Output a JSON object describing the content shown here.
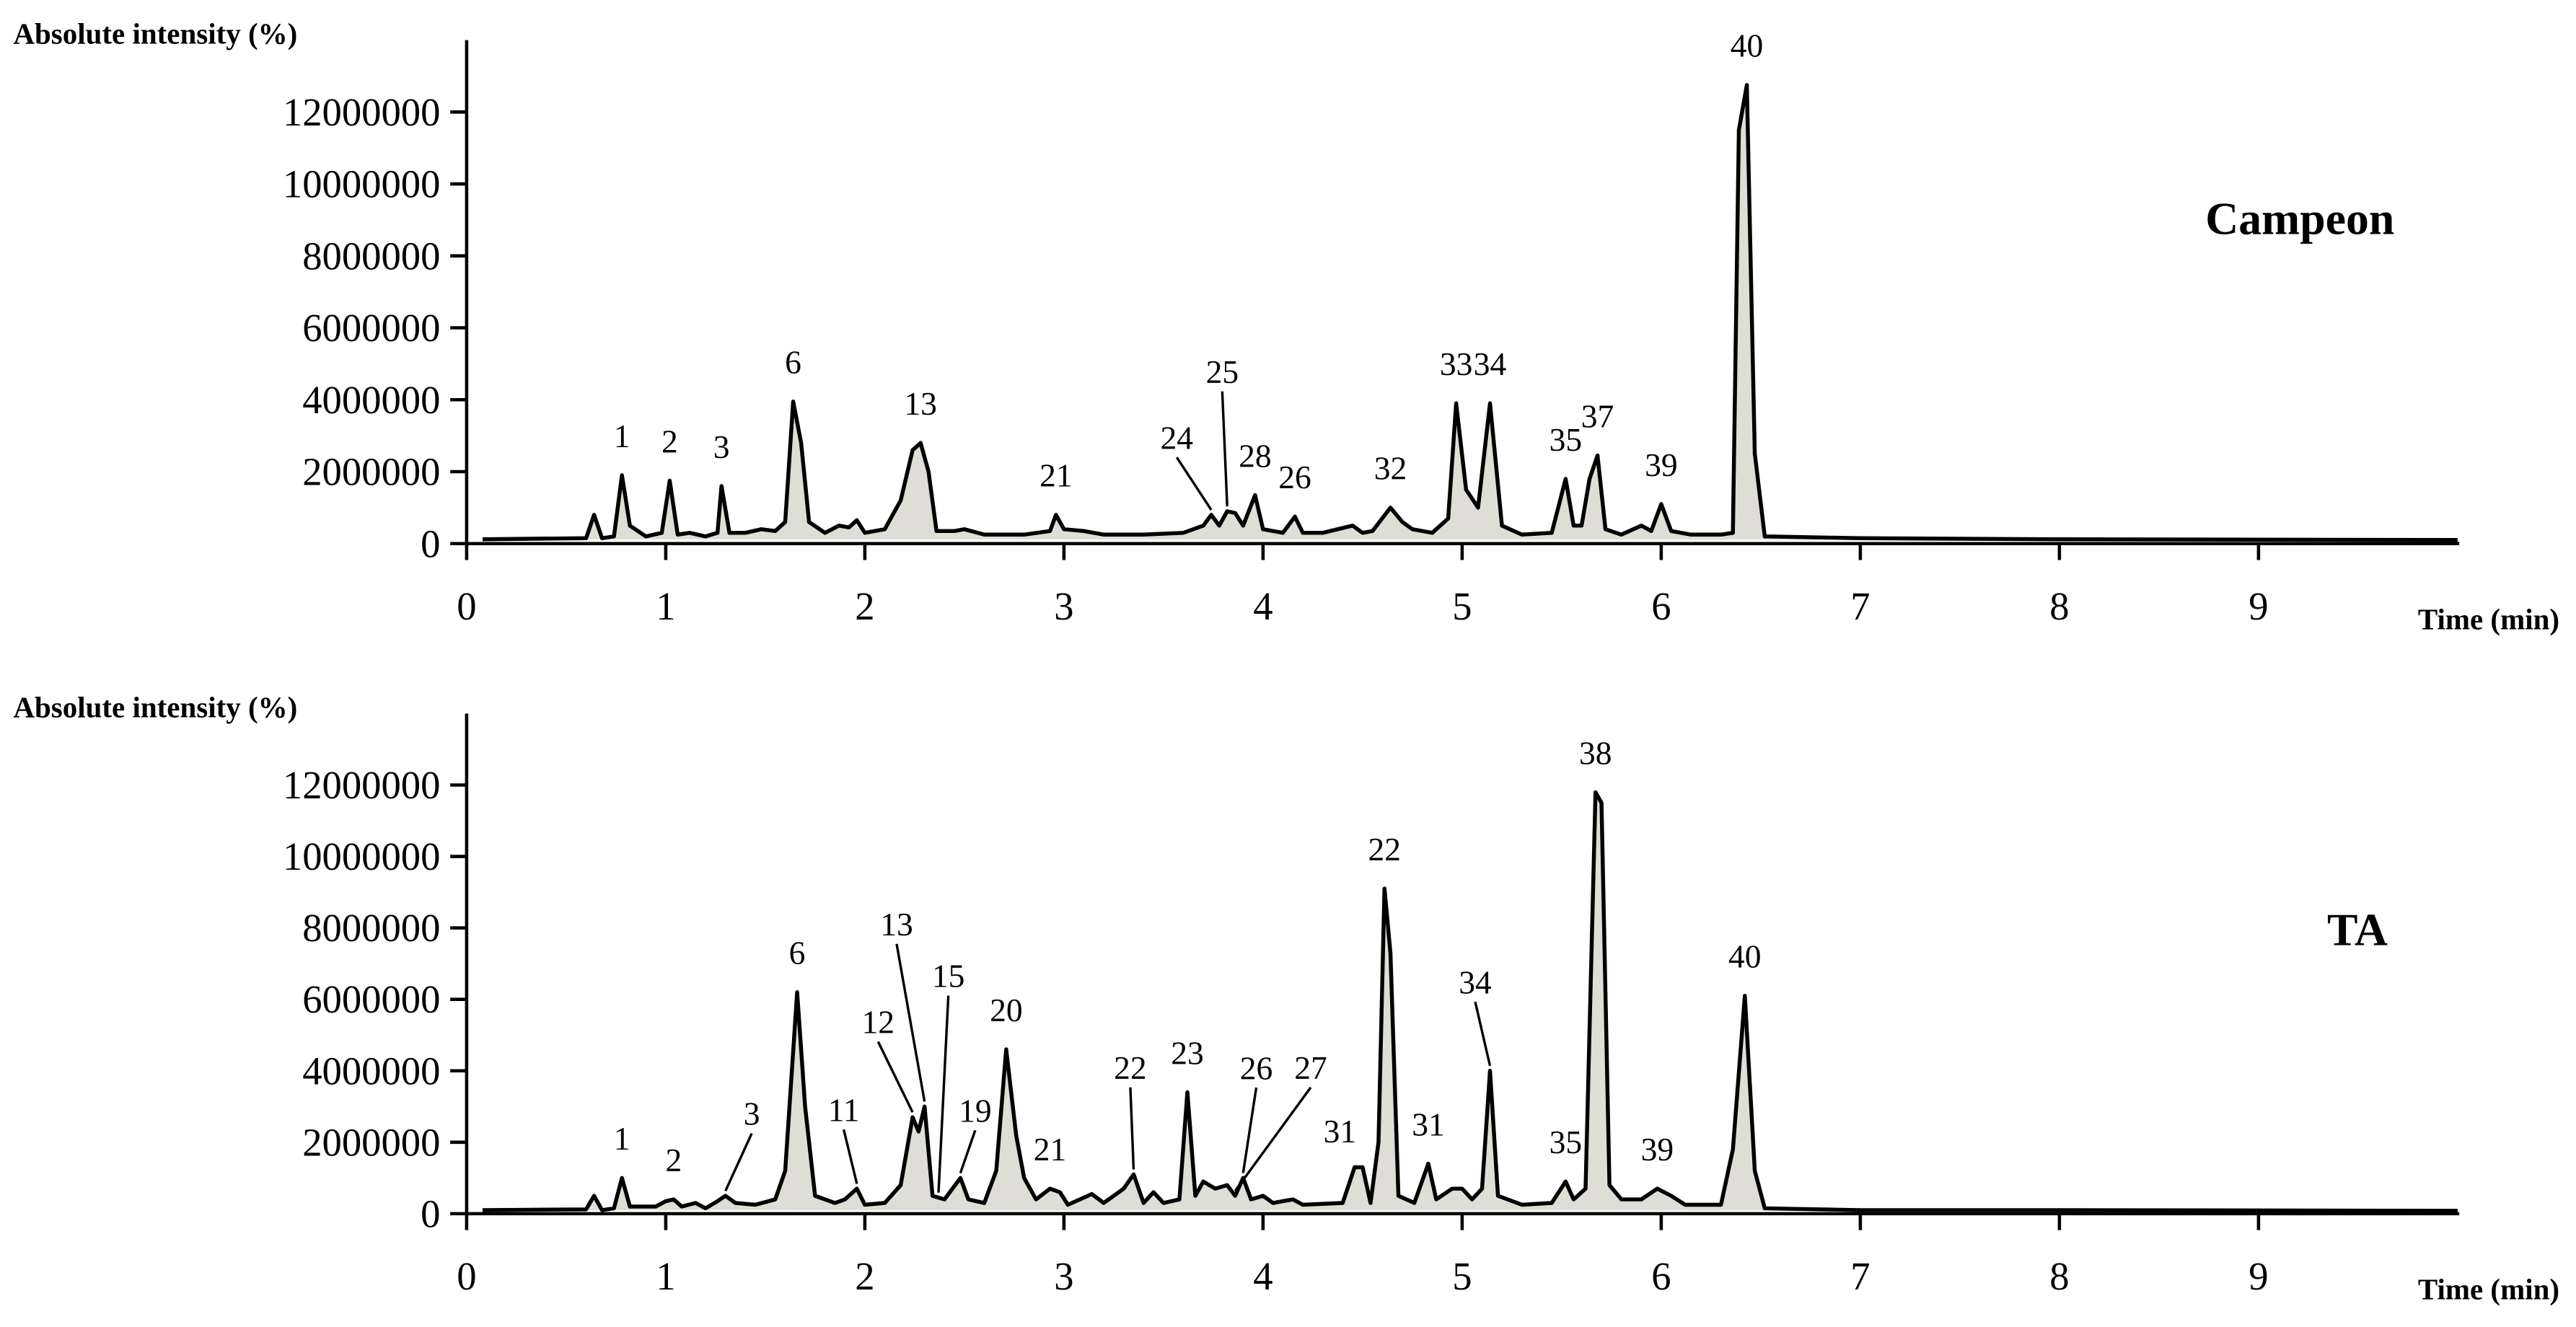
{
  "chart_data": [
    {
      "type": "area",
      "title": "Campeon",
      "y_label": "Absolute intensity (%)",
      "x_label": "Time (min)",
      "color": "#deded6",
      "line_color": "#000000",
      "xlim": [
        0,
        10
      ],
      "xticks": [
        0,
        1,
        2,
        3,
        4,
        5,
        6,
        7,
        8,
        9
      ],
      "ylim": [
        0,
        14000000
      ],
      "yticks": [
        0,
        2000000,
        4000000,
        6000000,
        8000000,
        10000000,
        12000000
      ],
      "x": [
        0.08,
        0.6,
        0.64,
        0.68,
        0.74,
        0.78,
        0.82,
        0.9,
        0.98,
        1.02,
        1.06,
        1.12,
        1.2,
        1.26,
        1.28,
        1.32,
        1.4,
        1.48,
        1.55,
        1.6,
        1.64,
        1.68,
        1.72,
        1.8,
        1.87,
        1.92,
        1.96,
        2.0,
        2.1,
        2.18,
        2.24,
        2.28,
        2.32,
        2.36,
        2.45,
        2.5,
        2.6,
        2.8,
        2.93,
        2.96,
        3.0,
        3.1,
        3.2,
        3.4,
        3.6,
        3.7,
        3.74,
        3.78,
        3.82,
        3.86,
        3.9,
        3.96,
        4.0,
        4.1,
        4.16,
        4.2,
        4.3,
        4.45,
        4.5,
        4.55,
        4.64,
        4.7,
        4.75,
        4.85,
        4.93,
        4.97,
        5.02,
        5.08,
        5.14,
        5.2,
        5.3,
        5.45,
        5.52,
        5.56,
        5.6,
        5.64,
        5.68,
        5.72,
        5.8,
        5.9,
        5.95,
        6.0,
        6.05,
        6.15,
        6.3,
        6.36,
        6.39,
        6.43,
        6.47,
        6.52,
        7.0,
        8.0,
        10.0
      ],
      "values": [
        120000,
        150000,
        800000,
        150000,
        200000,
        1900000,
        500000,
        200000,
        300000,
        1750000,
        250000,
        300000,
        200000,
        300000,
        1600000,
        300000,
        300000,
        400000,
        350000,
        600000,
        3950000,
        2800000,
        600000,
        300000,
        500000,
        450000,
        650000,
        300000,
        400000,
        1200000,
        2600000,
        2800000,
        2000000,
        350000,
        350000,
        400000,
        250000,
        250000,
        350000,
        800000,
        400000,
        350000,
        250000,
        250000,
        300000,
        500000,
        800000,
        500000,
        900000,
        850000,
        500000,
        1350000,
        400000,
        300000,
        750000,
        300000,
        300000,
        500000,
        300000,
        350000,
        1000000,
        600000,
        400000,
        300000,
        700000,
        3900000,
        1500000,
        1000000,
        3900000,
        500000,
        250000,
        300000,
        1800000,
        500000,
        500000,
        1800000,
        2450000,
        400000,
        250000,
        500000,
        350000,
        1100000,
        350000,
        250000,
        250000,
        300000,
        11500000,
        12750000,
        2500000,
        200000,
        150000,
        120000,
        100000
      ],
      "annotations": [
        {
          "text": "1",
          "x": 0.78,
          "y": 1900000
        },
        {
          "text": "2",
          "x": 1.02,
          "y": 1750000
        },
        {
          "text": "3",
          "x": 1.28,
          "y": 1600000
        },
        {
          "text": "6",
          "x": 1.64,
          "y": 3950000
        },
        {
          "text": "13",
          "x": 2.28,
          "y": 2800000
        },
        {
          "text": "21",
          "x": 2.96,
          "y": 800000
        },
        {
          "text": "24",
          "x": 3.74,
          "y": 800000
        },
        {
          "text": "25",
          "x": 3.82,
          "y": 900000
        },
        {
          "text": "28",
          "x": 3.96,
          "y": 1350000
        },
        {
          "text": "26",
          "x": 4.16,
          "y": 750000
        },
        {
          "text": "32",
          "x": 4.64,
          "y": 1000000
        },
        {
          "text": "33",
          "x": 4.97,
          "y": 3900000
        },
        {
          "text": "34",
          "x": 5.14,
          "y": 3900000
        },
        {
          "text": "35",
          "x": 5.52,
          "y": 1800000
        },
        {
          "text": "37",
          "x": 5.68,
          "y": 2450000
        },
        {
          "text": "39",
          "x": 6.0,
          "y": 1100000
        },
        {
          "text": "40",
          "x": 6.43,
          "y": 12750000
        }
      ]
    },
    {
      "type": "area",
      "title": "TA",
      "y_label": "Absolute intensity (%)",
      "x_label": "Time (min)",
      "color": "#deded6",
      "line_color": "#000000",
      "xlim": [
        0,
        10
      ],
      "xticks": [
        0,
        1,
        2,
        3,
        4,
        5,
        6,
        7,
        8,
        9
      ],
      "ylim": [
        0,
        14000000
      ],
      "yticks": [
        0,
        2000000,
        4000000,
        6000000,
        8000000,
        10000000,
        12000000
      ],
      "x": [
        0.08,
        0.6,
        0.64,
        0.68,
        0.74,
        0.78,
        0.82,
        0.95,
        1.0,
        1.04,
        1.08,
        1.15,
        1.2,
        1.26,
        1.3,
        1.35,
        1.45,
        1.55,
        1.6,
        1.66,
        1.7,
        1.75,
        1.85,
        1.9,
        1.96,
        2.0,
        2.1,
        2.18,
        2.24,
        2.27,
        2.3,
        2.34,
        2.37,
        2.4,
        2.48,
        2.52,
        2.6,
        2.66,
        2.71,
        2.76,
        2.8,
        2.86,
        2.93,
        2.98,
        3.02,
        3.08,
        3.14,
        3.2,
        3.3,
        3.35,
        3.4,
        3.45,
        3.5,
        3.58,
        3.62,
        3.66,
        3.7,
        3.76,
        3.82,
        3.86,
        3.9,
        3.94,
        4.0,
        4.05,
        4.15,
        4.2,
        4.4,
        4.46,
        4.5,
        4.54,
        4.58,
        4.61,
        4.64,
        4.68,
        4.76,
        4.83,
        4.87,
        4.95,
        5.0,
        5.05,
        5.1,
        5.14,
        5.18,
        5.3,
        5.45,
        5.52,
        5.56,
        5.62,
        5.67,
        5.7,
        5.74,
        5.8,
        5.9,
        5.98,
        6.05,
        6.12,
        6.3,
        6.36,
        6.42,
        6.47,
        6.52,
        7.0,
        8.0,
        10.0
      ],
      "values": [
        100000,
        120000,
        500000,
        100000,
        150000,
        1000000,
        200000,
        200000,
        350000,
        400000,
        200000,
        300000,
        150000,
        350000,
        500000,
        300000,
        250000,
        400000,
        1200000,
        6200000,
        3000000,
        500000,
        300000,
        400000,
        700000,
        250000,
        300000,
        800000,
        2700000,
        2300000,
        3000000,
        500000,
        450000,
        400000,
        1000000,
        400000,
        300000,
        1200000,
        4600000,
        2200000,
        1000000,
        400000,
        700000,
        600000,
        250000,
        400000,
        550000,
        300000,
        700000,
        1100000,
        300000,
        600000,
        300000,
        400000,
        3400000,
        500000,
        900000,
        700000,
        800000,
        500000,
        1000000,
        400000,
        500000,
        300000,
        400000,
        250000,
        300000,
        1300000,
        1300000,
        300000,
        2000000,
        9100000,
        7300000,
        500000,
        300000,
        1400000,
        400000,
        700000,
        700000,
        400000,
        700000,
        4000000,
        500000,
        250000,
        300000,
        900000,
        400000,
        700000,
        11800000,
        11500000,
        800000,
        400000,
        400000,
        700000,
        500000,
        250000,
        250000,
        1800000,
        6100000,
        1200000,
        150000,
        100000,
        100000,
        80000
      ],
      "annotations": [
        {
          "text": "1",
          "x": 0.78,
          "y": 1000000
        },
        {
          "text": "2",
          "x": 1.04,
          "y": 400000
        },
        {
          "text": "3",
          "x": 1.3,
          "y": 500000
        },
        {
          "text": "6",
          "x": 1.66,
          "y": 6200000
        },
        {
          "text": "11",
          "x": 1.96,
          "y": 700000
        },
        {
          "text": "12",
          "x": 2.24,
          "y": 2700000
        },
        {
          "text": "13",
          "x": 2.3,
          "y": 3000000
        },
        {
          "text": "15",
          "x": 2.37,
          "y": 450000
        },
        {
          "text": "19",
          "x": 2.48,
          "y": 1000000
        },
        {
          "text": "20",
          "x": 2.71,
          "y": 4600000
        },
        {
          "text": "21",
          "x": 2.93,
          "y": 700000
        },
        {
          "text": "22",
          "x": 3.35,
          "y": 1100000
        },
        {
          "text": "23",
          "x": 3.62,
          "y": 3400000
        },
        {
          "text": "26",
          "x": 3.9,
          "y": 1000000
        },
        {
          "text": "27",
          "x": 3.86,
          "y": 500000
        },
        {
          "text": "31",
          "x": 4.46,
          "y": 1300000
        },
        {
          "text": "22",
          "x": 4.61,
          "y": 9100000
        },
        {
          "text": "31",
          "x": 4.83,
          "y": 1400000
        },
        {
          "text": "34",
          "x": 5.14,
          "y": 4000000
        },
        {
          "text": "35",
          "x": 5.52,
          "y": 900000
        },
        {
          "text": "38",
          "x": 5.67,
          "y": 11800000
        },
        {
          "text": "39",
          "x": 5.98,
          "y": 700000
        },
        {
          "text": "40",
          "x": 6.42,
          "y": 6100000
        }
      ]
    }
  ]
}
